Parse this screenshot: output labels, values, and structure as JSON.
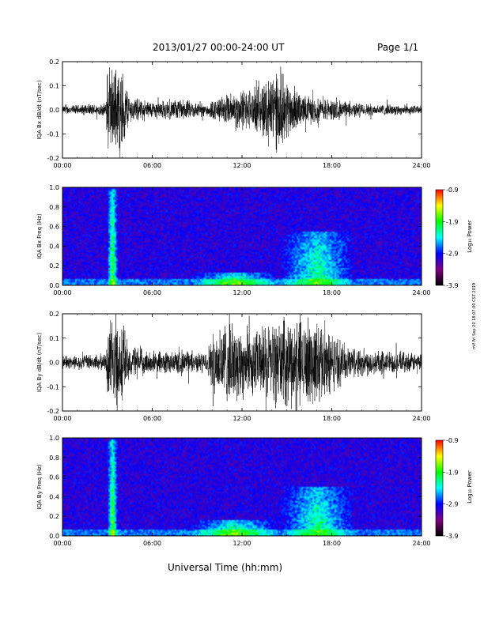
{
  "header": {
    "title": "2013/01/27  00:00-24:00 UT",
    "page": "Page 1/1"
  },
  "footer": {
    "xlabel": "Universal Time (hh:mm)"
  },
  "side_stamp": "mif Fri Sep 20 18:07:00 CST 2019",
  "colorbar": {
    "label": "Log₁₀ Power",
    "ticks": [
      "-0.9",
      "-1.9",
      "-2.9",
      "-3.9"
    ],
    "colors": [
      "#ff0000",
      "#ffff00",
      "#00ff00",
      "#00ffff",
      "#0000ff",
      "#800080",
      "#000000"
    ]
  },
  "chart_data": [
    {
      "type": "line",
      "name": "bx-waveform",
      "ylabel": "IQA Bx dB/dt (nT/sec)",
      "xlim": [
        "00:00",
        "24:00"
      ],
      "ylim": [
        -0.2,
        0.2
      ],
      "xticks": [
        "00:00",
        "06:00",
        "12:00",
        "18:00",
        "24:00"
      ],
      "yticks": [
        "0.2",
        "0.1",
        "0.0",
        "-0.1",
        "-0.2"
      ],
      "envelope": [
        {
          "t": 0,
          "a": 0.02
        },
        {
          "t": 2.9,
          "a": 0.03
        },
        {
          "t": 3.0,
          "a": 0.2
        },
        {
          "t": 4.0,
          "a": 0.2
        },
        {
          "t": 4.5,
          "a": 0.06
        },
        {
          "t": 6,
          "a": 0.04
        },
        {
          "t": 8,
          "a": 0.05
        },
        {
          "t": 9.5,
          "a": 0.03
        },
        {
          "t": 10.5,
          "a": 0.06
        },
        {
          "t": 12,
          "a": 0.1
        },
        {
          "t": 13,
          "a": 0.1
        },
        {
          "t": 14,
          "a": 0.2
        },
        {
          "t": 15,
          "a": 0.15
        },
        {
          "t": 16,
          "a": 0.07
        },
        {
          "t": 18,
          "a": 0.05
        },
        {
          "t": 20,
          "a": 0.03
        },
        {
          "t": 24,
          "a": 0.02
        }
      ]
    },
    {
      "type": "heatmap",
      "name": "bx-spectrogram",
      "ylabel": "IQA Bx Freq (Hz)",
      "xlim": [
        "00:00",
        "24:00"
      ],
      "ylim": [
        0.0,
        1.0
      ],
      "xticks": [
        "00:00",
        "06:00",
        "12:00",
        "18:00",
        "24:00"
      ],
      "yticks": [
        "1.0",
        "0.8",
        "0.6",
        "0.4",
        "0.2",
        "0.0"
      ],
      "zlim": [
        -3.9,
        -0.9
      ],
      "features": [
        {
          "t": 3.3,
          "width": 0.35,
          "fmax": 1.0,
          "level": 0.55
        },
        {
          "t": 11.5,
          "width": 3.0,
          "fmax": 0.12,
          "level": 0.45
        },
        {
          "t": 17.0,
          "width": 2.5,
          "fmax": 0.55,
          "level": 0.4
        }
      ]
    },
    {
      "type": "line",
      "name": "by-waveform",
      "ylabel": "IQA By dB/dt (nT/sec)",
      "xlim": [
        "00:00",
        "24:00"
      ],
      "ylim": [
        -0.2,
        0.2
      ],
      "xticks": [
        "00:00",
        "06:00",
        "12:00",
        "18:00",
        "24:00"
      ],
      "yticks": [
        "0.2",
        "0.1",
        "0.0",
        "-0.1",
        "-0.2"
      ],
      "envelope": [
        {
          "t": 0,
          "a": 0.03
        },
        {
          "t": 2.9,
          "a": 0.04
        },
        {
          "t": 3.0,
          "a": 0.2
        },
        {
          "t": 4.0,
          "a": 0.2
        },
        {
          "t": 4.5,
          "a": 0.08
        },
        {
          "t": 6,
          "a": 0.05
        },
        {
          "t": 8,
          "a": 0.06
        },
        {
          "t": 9.5,
          "a": 0.04
        },
        {
          "t": 10.5,
          "a": 0.2
        },
        {
          "t": 13,
          "a": 0.15
        },
        {
          "t": 14,
          "a": 0.2
        },
        {
          "t": 17,
          "a": 0.2
        },
        {
          "t": 19,
          "a": 0.08
        },
        {
          "t": 21,
          "a": 0.06
        },
        {
          "t": 24,
          "a": 0.04
        }
      ]
    },
    {
      "type": "heatmap",
      "name": "by-spectrogram",
      "ylabel": "IQA By Freq (Hz)",
      "xlim": [
        "00:00",
        "24:00"
      ],
      "ylim": [
        0.0,
        1.0
      ],
      "xticks": [
        "00:00",
        "06:00",
        "12:00",
        "18:00",
        "24:00"
      ],
      "yticks": [
        "1.0",
        "0.8",
        "0.6",
        "0.4",
        "0.2",
        "0.0"
      ],
      "zlim": [
        -3.9,
        -0.9
      ],
      "features": [
        {
          "t": 3.3,
          "width": 0.35,
          "fmax": 1.0,
          "level": 0.55
        },
        {
          "t": 11.5,
          "width": 3.0,
          "fmax": 0.15,
          "level": 0.45
        },
        {
          "t": 17.0,
          "width": 2.5,
          "fmax": 0.5,
          "level": 0.4
        }
      ]
    }
  ]
}
